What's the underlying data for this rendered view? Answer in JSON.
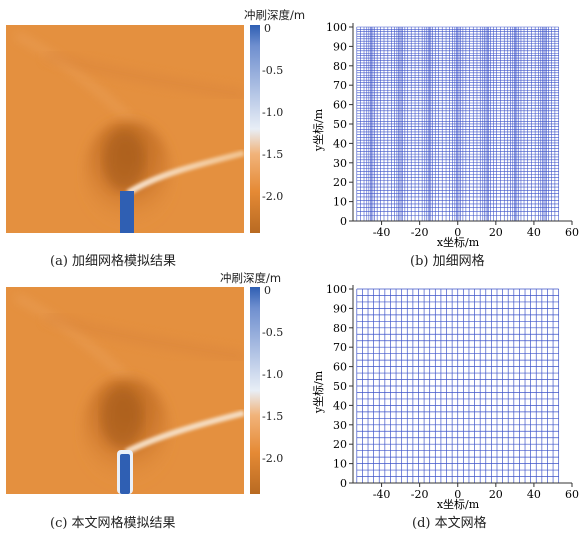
{
  "colorbar": {
    "title": "冲刷深度/m",
    "ticks": [
      "0",
      "-0.5",
      "-1.0",
      "-1.5",
      "-2.0"
    ]
  },
  "panels": {
    "a": {
      "caption": "(a) 加细网格模拟结果"
    },
    "b": {
      "caption": "(b) 加细网格"
    },
    "c": {
      "caption": "(c) 本文网格模拟结果"
    },
    "d": {
      "caption": "(d) 本文网格"
    }
  },
  "grid_plot": {
    "xlabel": "x坐标/m",
    "ylabel": "y坐标/m",
    "x_ticks": [
      "-40",
      "-20",
      "0",
      "20",
      "40",
      "60"
    ],
    "y_ticks": [
      "0",
      "10",
      "20",
      "30",
      "40",
      "50",
      "60",
      "70",
      "80",
      "90",
      "100"
    ],
    "xlim": [
      -55,
      60
    ],
    "ylim": [
      0,
      100
    ],
    "line_color": "#3f55c9"
  },
  "colors": {
    "scour_background": "#e4903f",
    "pier": "#2f5fb3"
  }
}
